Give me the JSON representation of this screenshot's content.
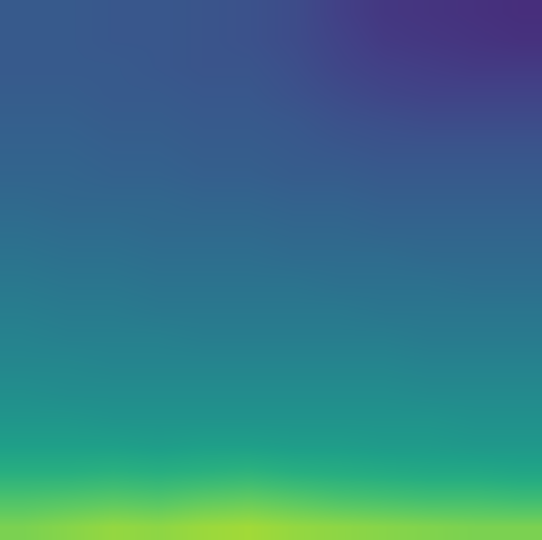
{
  "chart_data": {
    "type": "heatmap",
    "color": "Viridis",
    "color_range": [
      0,
      1
    ],
    "tick_labels": false,
    "cells": [
      [
        0.8,
        0.82,
        0.84,
        0.83,
        0.85,
        0.86,
        0.84,
        0.83,
        0.82,
        0.81,
        0.8,
        0.8
      ],
      [
        0.72,
        0.73,
        0.74,
        0.73,
        0.75,
        0.76,
        0.74,
        0.72,
        0.71,
        0.7,
        0.7,
        0.69
      ],
      [
        0.63,
        0.63,
        0.64,
        0.63,
        0.64,
        0.65,
        0.63,
        0.62,
        0.61,
        0.6,
        0.6,
        0.59
      ],
      [
        0.56,
        0.56,
        0.56,
        0.55,
        0.56,
        0.56,
        0.55,
        0.55,
        0.54,
        0.54,
        0.53,
        0.53
      ],
      [
        0.52,
        0.52,
        0.51,
        0.51,
        0.51,
        0.51,
        0.51,
        0.51,
        0.51,
        0.51,
        0.5,
        0.5
      ],
      [
        0.49,
        0.48,
        0.48,
        0.48,
        0.48,
        0.48,
        0.48,
        0.48,
        0.48,
        0.47,
        0.47,
        0.47
      ],
      [
        0.46,
        0.46,
        0.45,
        0.45,
        0.45,
        0.45,
        0.45,
        0.45,
        0.45,
        0.44,
        0.44,
        0.44
      ],
      [
        0.44,
        0.43,
        0.43,
        0.43,
        0.42,
        0.42,
        0.42,
        0.42,
        0.42,
        0.41,
        0.41,
        0.41
      ],
      [
        0.42,
        0.41,
        0.41,
        0.4,
        0.4,
        0.4,
        0.4,
        0.4,
        0.39,
        0.39,
        0.39,
        0.39
      ],
      [
        0.4,
        0.39,
        0.39,
        0.38,
        0.38,
        0.38,
        0.38,
        0.37,
        0.37,
        0.37,
        0.36,
        0.36
      ],
      [
        0.38,
        0.37,
        0.37,
        0.36,
        0.36,
        0.36,
        0.35,
        0.35,
        0.35,
        0.34,
        0.34,
        0.34
      ],
      [
        0.36,
        0.35,
        0.35,
        0.34,
        0.34,
        0.34,
        0.33,
        0.33,
        0.32,
        0.32,
        0.32,
        0.32
      ],
      [
        0.34,
        0.33,
        0.33,
        0.33,
        0.32,
        0.32,
        0.31,
        0.31,
        0.3,
        0.3,
        0.3,
        0.3
      ],
      [
        0.32,
        0.32,
        0.31,
        0.31,
        0.3,
        0.3,
        0.29,
        0.29,
        0.28,
        0.28,
        0.28,
        0.28
      ],
      [
        0.31,
        0.31,
        0.3,
        0.3,
        0.29,
        0.29,
        0.28,
        0.27,
        0.26,
        0.26,
        0.26,
        0.26
      ],
      [
        0.3,
        0.3,
        0.29,
        0.29,
        0.28,
        0.28,
        0.27,
        0.25,
        0.24,
        0.23,
        0.23,
        0.23
      ],
      [
        0.29,
        0.29,
        0.28,
        0.28,
        0.27,
        0.27,
        0.25,
        0.23,
        0.21,
        0.2,
        0.2,
        0.2
      ],
      [
        0.28,
        0.28,
        0.28,
        0.27,
        0.26,
        0.26,
        0.24,
        0.21,
        0.19,
        0.18,
        0.17,
        0.17
      ],
      [
        0.28,
        0.28,
        0.27,
        0.27,
        0.26,
        0.25,
        0.23,
        0.2,
        0.17,
        0.16,
        0.15,
        0.14
      ],
      [
        0.28,
        0.28,
        0.27,
        0.27,
        0.26,
        0.25,
        0.23,
        0.19,
        0.16,
        0.15,
        0.14,
        0.13
      ]
    ]
  }
}
